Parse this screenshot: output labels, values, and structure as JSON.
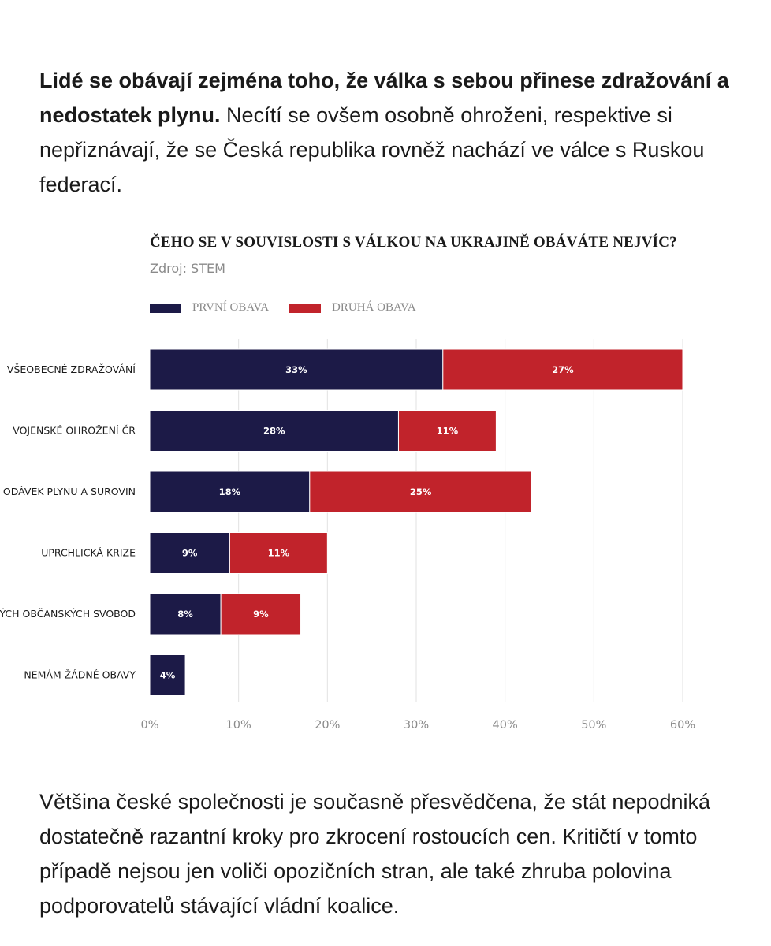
{
  "intro": {
    "bold": "Lidé se obávají zejména toho, že válka s sebou přinese zdražování a nedostatek plynu.",
    "rest": " Necítí se ovšem osobně ohroženi, respektive si nepřiznávají, že se Česká republika rovněž nachází ve válce s Ruskou federací."
  },
  "outro": {
    "text": "Většina české společnosti je současně přesvědčena, že stát nepodniká dostatečně razantní kroky pro zkrocení rostoucích cen. Kritičtí v tomto případě nejsou jen voliči opozičních stran, ale také zhruba polovina podporovatelů stávající vládní koalice."
  },
  "chart_data": {
    "type": "bar",
    "orientation": "horizontal",
    "stacked": true,
    "title": "ČEHO SE V SOUVISLOSTI S VÁLKOU NA UKRAJINĚ OBÁVÁTE NEJVÍC?",
    "source": "Zdroj: STEM",
    "categories": [
      "VŠEOBECNÉ ZDRAŽOVÁNÍ",
      "VOJENSKÉ OHROŽENÍ ČR",
      "ODÁVEK PLYNU A SUROVIN",
      "UPRCHLICKÁ KRIZE",
      "ÝCH OBČANSKÝCH SVOBOD",
      "NEMÁM ŽÁDNÉ OBAVY"
    ],
    "series": [
      {
        "name": "PRVNÍ OBAVA",
        "color": "#1c1a47",
        "values": [
          33,
          28,
          18,
          9,
          8,
          4
        ],
        "labels": [
          "33%",
          "28%",
          "18%",
          "9%",
          "8%",
          "4%"
        ]
      },
      {
        "name": "DRUHÁ OBAVA",
        "color": "#c1232b",
        "values": [
          27,
          11,
          25,
          11,
          9,
          0
        ],
        "labels": [
          "27%",
          "11%",
          "25%",
          "11%",
          "9%",
          ""
        ]
      }
    ],
    "xlim": [
      0,
      60
    ],
    "xticks": [
      "0%",
      "10%",
      "20%",
      "30%",
      "40%",
      "50%",
      "60%"
    ],
    "grid": true,
    "legend_position": "top-left"
  }
}
